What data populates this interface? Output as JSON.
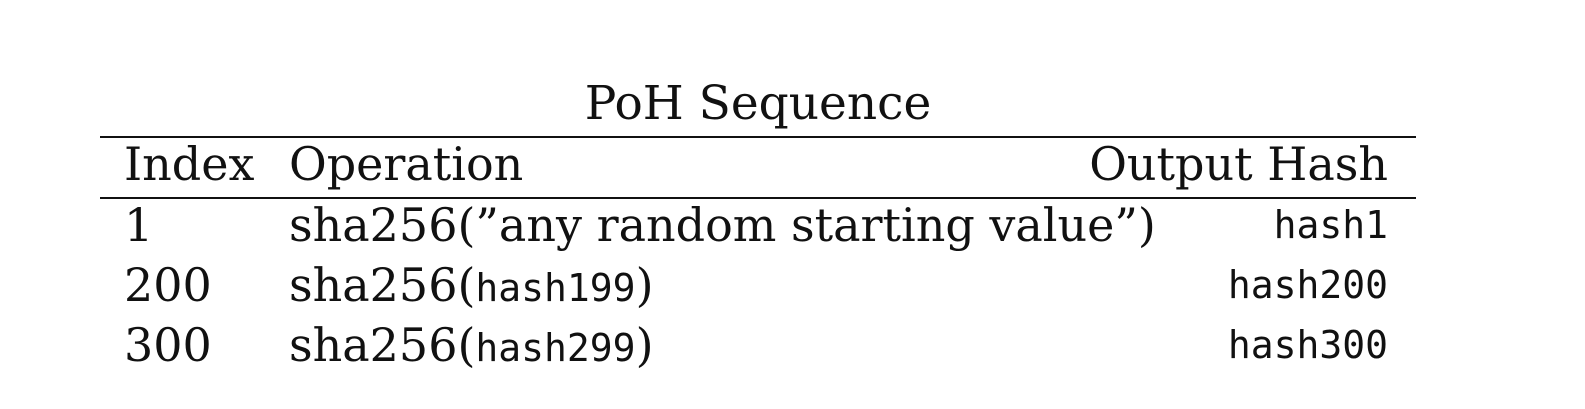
{
  "table": {
    "caption": "PoH Sequence",
    "headers": {
      "index": "Index",
      "operation": "Operation",
      "output_hash": "Output Hash"
    },
    "rows": [
      {
        "index": "1",
        "operation_prefix": "sha256(”any random starting value”)",
        "operation_arg": "",
        "operation_suffix": "",
        "output_hash": "hash1"
      },
      {
        "index": "200",
        "operation_prefix": "sha256(",
        "operation_arg": "hash199",
        "operation_suffix": ")",
        "output_hash": "hash200"
      },
      {
        "index": "300",
        "operation_prefix": "sha256(",
        "operation_arg": "hash299",
        "operation_suffix": ")",
        "output_hash": "hash300"
      }
    ]
  }
}
